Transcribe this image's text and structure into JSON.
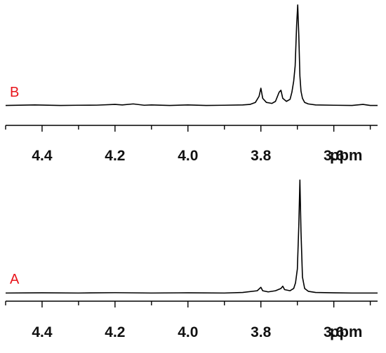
{
  "chart_data": [
    {
      "type": "line",
      "panel_label": "B",
      "panel_label_color": "#e8141b",
      "xlabel": "ppm",
      "xlim": [
        4.5,
        3.48
      ],
      "x_reversed": true,
      "x_ticks": [
        4.4,
        4.2,
        4.0,
        3.8,
        3.6
      ],
      "x_tick_labels": [
        "4.4",
        "4.2",
        "4.0",
        "3.8",
        "3.6"
      ],
      "ylim": [
        0,
        100
      ],
      "y_axis_visible": false,
      "line_color": "#000000",
      "series": [
        {
          "x": [
            4.5,
            4.42,
            4.35,
            4.3,
            4.25,
            4.2,
            4.18,
            4.15,
            4.12,
            4.1,
            4.05,
            4.0,
            3.95,
            3.9,
            3.85,
            3.83,
            3.815,
            3.805,
            3.8,
            3.795,
            3.785,
            3.77,
            3.76,
            3.75,
            3.745,
            3.74,
            3.73,
            3.72,
            3.715,
            3.71,
            3.706,
            3.702,
            3.699,
            3.696,
            3.693,
            3.69,
            3.686,
            3.68,
            3.67,
            3.65,
            3.6,
            3.55,
            3.52,
            3.5,
            3.48
          ],
          "y": [
            1.0,
            1.5,
            1.0,
            1.2,
            1.3,
            2.0,
            1.5,
            2.5,
            1.2,
            1.5,
            1.0,
            1.5,
            1.0,
            1.2,
            1.5,
            2.0,
            4.0,
            10.0,
            18.0,
            8.0,
            4.0,
            3.0,
            5.0,
            14.0,
            16.0,
            8.0,
            5.0,
            7.0,
            14.0,
            25.0,
            40.0,
            80.0,
            100.0,
            70.0,
            30.0,
            15.0,
            8.0,
            4.0,
            2.5,
            1.5,
            1.2,
            1.0,
            2.0,
            1.0,
            1.0
          ]
        }
      ]
    },
    {
      "type": "line",
      "panel_label": "A",
      "panel_label_color": "#e8141b",
      "xlabel": "ppm",
      "xlim": [
        4.5,
        3.48
      ],
      "x_reversed": true,
      "x_ticks": [
        4.4,
        4.2,
        4.0,
        3.8,
        3.6
      ],
      "x_tick_labels": [
        "4.4",
        "4.2",
        "4.0",
        "3.8",
        "3.6"
      ],
      "ylim": [
        0,
        100
      ],
      "y_axis_visible": false,
      "line_color": "#000000",
      "series": [
        {
          "x": [
            4.5,
            4.4,
            4.3,
            4.2,
            4.1,
            4.0,
            3.9,
            3.85,
            3.81,
            3.8,
            3.795,
            3.78,
            3.76,
            3.745,
            3.74,
            3.735,
            3.72,
            3.71,
            3.705,
            3.7,
            3.696,
            3.693,
            3.69,
            3.686,
            3.68,
            3.67,
            3.65,
            3.6,
            3.55,
            3.5,
            3.48
          ],
          "y": [
            1.0,
            1.2,
            1.0,
            1.3,
            1.0,
            1.2,
            1.0,
            1.5,
            3.0,
            6.0,
            3.0,
            2.0,
            3.0,
            5.0,
            7.0,
            4.0,
            3.0,
            5.0,
            10.0,
            22.0,
            60.0,
            100.0,
            55.0,
            15.0,
            5.0,
            2.5,
            1.5,
            1.2,
            1.0,
            1.0,
            1.0
          ]
        }
      ]
    }
  ]
}
